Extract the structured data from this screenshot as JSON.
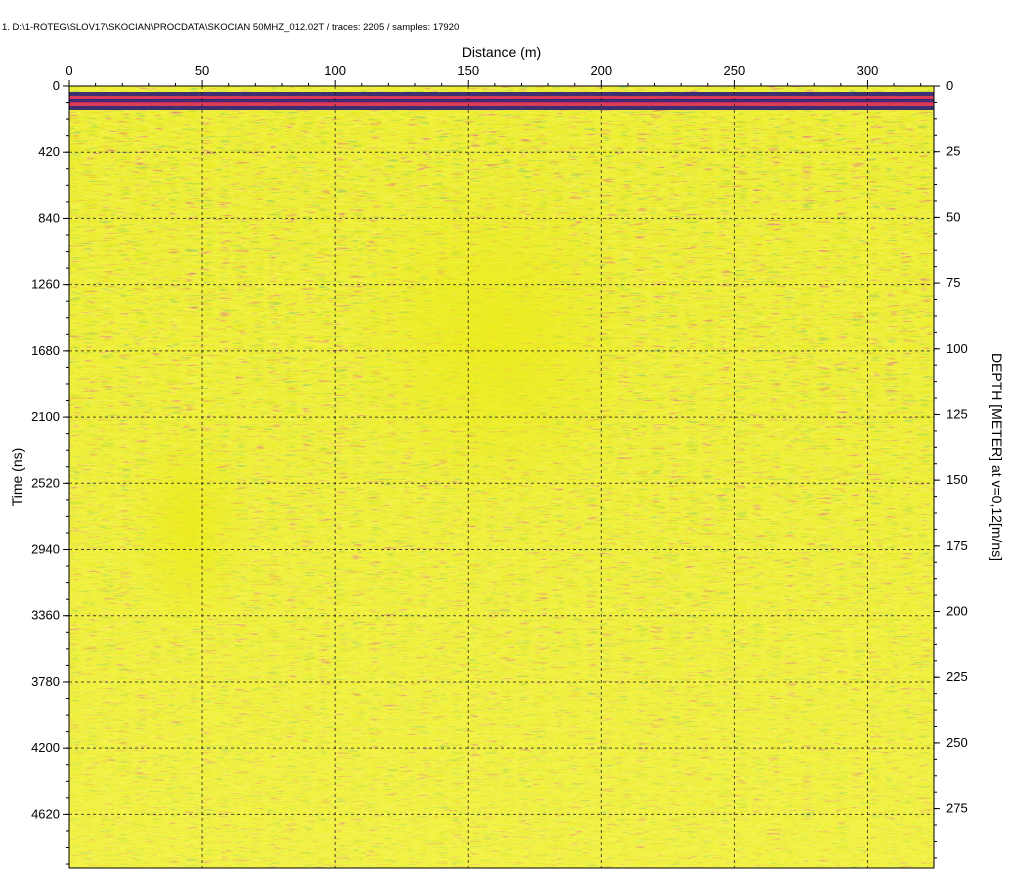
{
  "header": {
    "file_info": "1. D:\\1-ROTEG\\SLOV17\\SKOCIAN\\PROCDATA\\SKOCIAN 50MHZ_012.02T / traces: 2205 / samples: 17920"
  },
  "chart_data": {
    "type": "heatmap",
    "title": "",
    "xlabel": "Distance (m)",
    "ylabel": "Time (ns)",
    "y2label": "DEPTH [METER] at v=0,12[m/ns]",
    "xlim": [
      0,
      325
    ],
    "ylim": [
      0,
      4960
    ],
    "y2lim": [
      0,
      297.6
    ],
    "xticks": [
      0,
      50,
      100,
      150,
      200,
      250,
      300
    ],
    "yticks": [
      0,
      420,
      840,
      1260,
      1680,
      2100,
      2520,
      2940,
      3360,
      3780,
      4200,
      4620
    ],
    "y2ticks": [
      0,
      25,
      50,
      75,
      100,
      125,
      150,
      175,
      200,
      225,
      250,
      275
    ],
    "grid": true,
    "colors": {
      "background": "#e8ea1a",
      "positive": "#d8285a",
      "negative": "#2a1a78",
      "mid": "#3c9a2e",
      "grid": "#222222"
    }
  }
}
